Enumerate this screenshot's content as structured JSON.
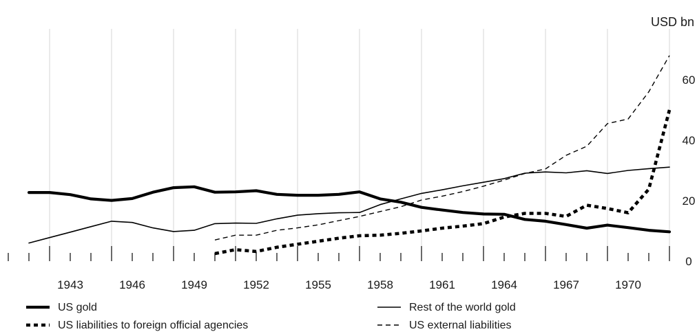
{
  "chart_data": {
    "type": "line",
    "title": "",
    "unit_label": "USD bn",
    "xlim": [
      1940,
      1972
    ],
    "ylim": [
      0,
      70
    ],
    "y_ticks": [
      0,
      20,
      40,
      60
    ],
    "x_ticks": [
      1943,
      1946,
      1949,
      1952,
      1955,
      1958,
      1961,
      1964,
      1967,
      1970
    ],
    "grid": "vertical",
    "legend_position": "bottom",
    "series": [
      {
        "name": "US gold",
        "style": "thick-solid",
        "color": "#000000",
        "x": [
          1941,
          1942,
          1943,
          1944,
          1945,
          1946,
          1947,
          1948,
          1949,
          1950,
          1951,
          1952,
          1953,
          1954,
          1955,
          1956,
          1957,
          1958,
          1959,
          1960,
          1961,
          1962,
          1963,
          1964,
          1965,
          1966,
          1967,
          1968,
          1969,
          1970,
          1971,
          1972
        ],
        "y": [
          22.7,
          22.7,
          22.0,
          20.6,
          20.1,
          20.7,
          22.8,
          24.3,
          24.6,
          22.8,
          22.9,
          23.3,
          22.1,
          21.8,
          21.8,
          22.1,
          22.9,
          20.6,
          19.5,
          17.8,
          16.9,
          16.1,
          15.6,
          15.5,
          13.8,
          13.2,
          12.1,
          10.9,
          11.9,
          11.1,
          10.2,
          9.7
        ]
      },
      {
        "name": "Rest of the world gold",
        "style": "thin-solid",
        "color": "#000000",
        "x": [
          1941,
          1942,
          1943,
          1944,
          1945,
          1946,
          1947,
          1948,
          1949,
          1950,
          1951,
          1952,
          1953,
          1954,
          1955,
          1956,
          1957,
          1958,
          1959,
          1960,
          1961,
          1962,
          1963,
          1964,
          1965,
          1966,
          1967,
          1968,
          1969,
          1970,
          1971,
          1972
        ],
        "y": [
          6.0,
          7.8,
          9.6,
          11.4,
          13.2,
          12.8,
          11.0,
          9.8,
          10.2,
          12.4,
          12.6,
          12.5,
          14.0,
          15.2,
          15.7,
          16.0,
          16.1,
          18.7,
          20.6,
          22.4,
          23.6,
          24.9,
          26.1,
          27.3,
          29.1,
          29.5,
          29.2,
          29.9,
          29.0,
          30.0,
          30.6,
          31.1
        ]
      },
      {
        "name": "US liabilities to foreign official agencies",
        "style": "thick-dotted",
        "color": "#000000",
        "x": [
          1950,
          1951,
          1952,
          1953,
          1954,
          1955,
          1956,
          1957,
          1958,
          1959,
          1960,
          1961,
          1962,
          1963,
          1964,
          1965,
          1966,
          1967,
          1968,
          1969,
          1970,
          1971,
          1972
        ],
        "y": [
          2.5,
          3.8,
          3.2,
          4.6,
          5.6,
          6.6,
          7.6,
          8.4,
          8.6,
          9.2,
          10.0,
          10.9,
          11.6,
          12.4,
          14.6,
          15.8,
          15.8,
          14.8,
          18.5,
          17.4,
          16.0,
          23.8,
          50.0
        ]
      },
      {
        "name": "US external liabilities",
        "style": "thin-dashed",
        "color": "#000000",
        "x": [
          1950,
          1951,
          1952,
          1953,
          1954,
          1955,
          1956,
          1957,
          1958,
          1959,
          1960,
          1961,
          1962,
          1963,
          1964,
          1965,
          1966,
          1967,
          1968,
          1969,
          1970,
          1971,
          1972
        ],
        "y": [
          7.0,
          8.6,
          8.6,
          10.2,
          11.0,
          12.0,
          13.4,
          14.8,
          16.4,
          18.0,
          20.2,
          21.5,
          23.0,
          24.8,
          26.8,
          29.0,
          30.5,
          35.0,
          38.0,
          45.5,
          47.0,
          56.0,
          68.0
        ]
      }
    ]
  }
}
